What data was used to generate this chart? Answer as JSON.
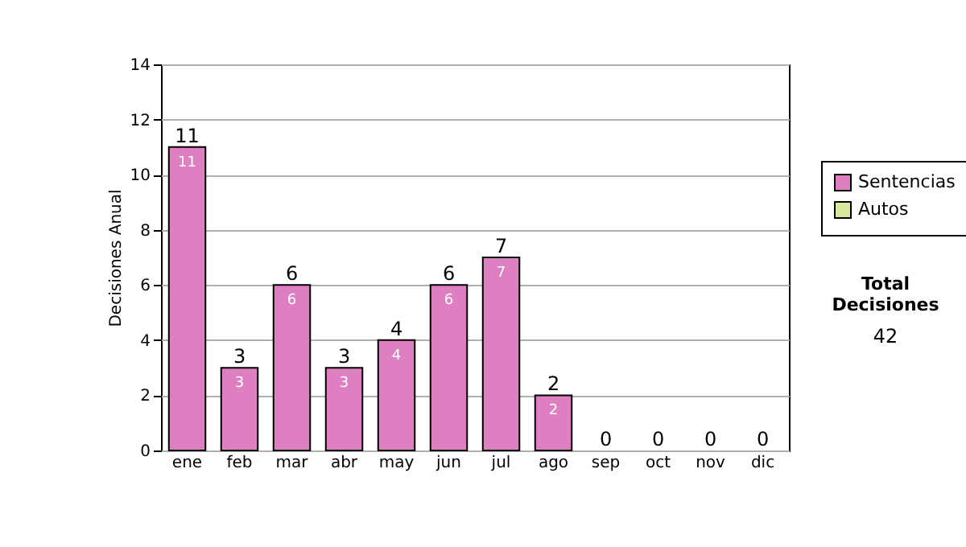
{
  "chart_data": {
    "type": "bar",
    "stacked": true,
    "ylabel": "Decisiones Anual",
    "categories": [
      "ene",
      "feb",
      "mar",
      "abr",
      "may",
      "jun",
      "jul",
      "ago",
      "sep",
      "oct",
      "nov",
      "dic"
    ],
    "series": [
      {
        "name": "Sentencias",
        "color": "#dd7fc0",
        "values": [
          11,
          3,
          6,
          3,
          4,
          6,
          7,
          2,
          0,
          0,
          0,
          0
        ],
        "value_labels": [
          "11",
          "3",
          "6",
          "3",
          "4",
          "6",
          "7",
          "2",
          null,
          null,
          null,
          null
        ]
      },
      {
        "name": "Autos",
        "color": "#d8eaa0",
        "values": [
          0,
          0,
          0,
          0,
          0,
          0,
          0,
          0,
          0,
          0,
          0,
          0
        ]
      }
    ],
    "totals": [
      "11",
      "3",
      "6",
      "3",
      "4",
      "6",
      "7",
      "2",
      "0",
      "0",
      "0",
      "0"
    ],
    "ylim": [
      0,
      14
    ],
    "yticks": [
      0,
      2,
      4,
      6,
      8,
      10,
      12,
      14
    ],
    "grid": "y",
    "legend": "right",
    "annotations": [
      "Total Decisiones",
      "42"
    ]
  }
}
